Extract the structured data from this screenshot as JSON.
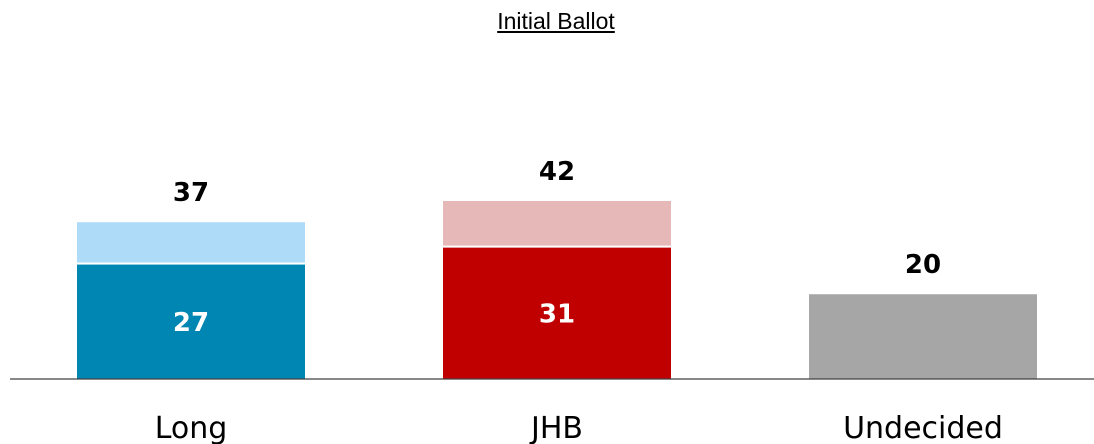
{
  "chart_data": {
    "type": "bar",
    "title": "Initial Ballot",
    "xlabel": "",
    "ylabel": "",
    "categories": [
      "Long",
      "JHB",
      "Undecided"
    ],
    "values": [
      37,
      42,
      20
    ],
    "inner_values": [
      27,
      31,
      null
    ],
    "inner_labels": [
      "27",
      "31",
      ""
    ],
    "total_labels": [
      "37",
      "42",
      "20"
    ],
    "colors": {
      "base": [
        "#0086B3",
        "#C00000",
        "#A6A6A6"
      ],
      "top": [
        "#AEDCF8",
        "#E6B8B7",
        "#A6A6A6"
      ]
    },
    "ylim": [
      0,
      42
    ],
    "grid": false,
    "legend": "none"
  }
}
